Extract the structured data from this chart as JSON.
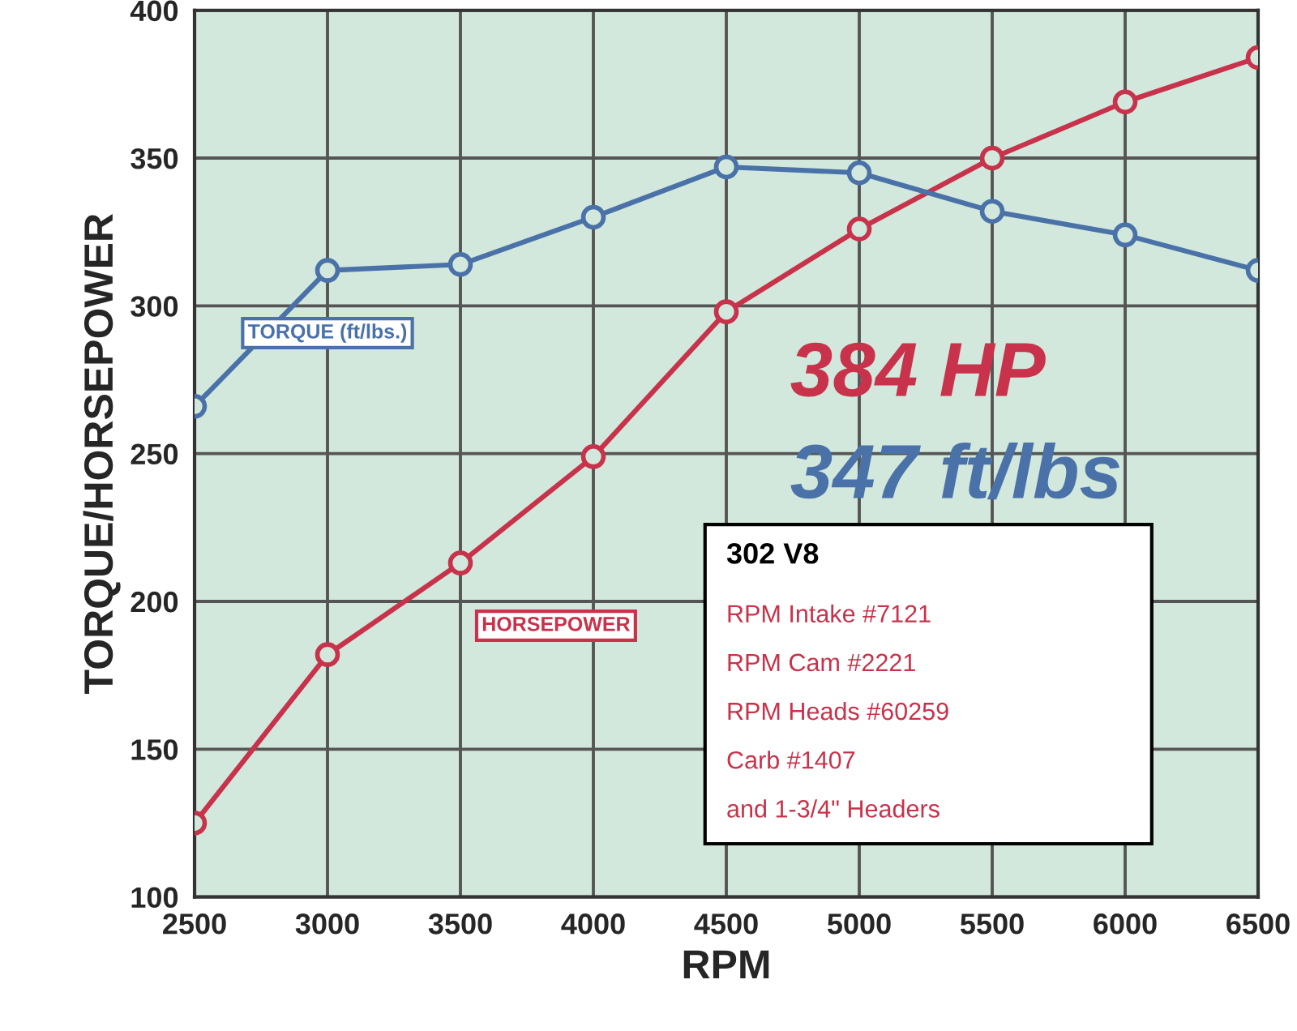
{
  "chart_data": {
    "type": "line",
    "xlabel": "RPM",
    "ylabel": "TORQUE/HORSEPOWER",
    "x": [
      2500,
      3000,
      3500,
      4000,
      4500,
      5000,
      5500,
      6000,
      6500
    ],
    "series": [
      {
        "name": "HORSEPOWER",
        "color": "#c8324a",
        "values": [
          125,
          182,
          213,
          249,
          298,
          326,
          350,
          369,
          384
        ]
      },
      {
        "name": "TORQUE (ft/lbs.)",
        "color": "#4a72a8",
        "values": [
          266,
          312,
          314,
          330,
          347,
          345,
          332,
          324,
          312
        ]
      }
    ],
    "xlim": [
      2500,
      6500
    ],
    "xticks": [
      2500,
      3000,
      3500,
      4000,
      4500,
      5000,
      5500,
      6000,
      6500
    ],
    "ylim": [
      100,
      400
    ],
    "yticks": [
      100,
      150,
      200,
      250,
      300,
      350,
      400
    ],
    "grid": true,
    "marker": "circle",
    "line_style": "solid",
    "annotations": [
      "384 HP",
      "347 ft/lbs",
      "302 V8",
      "RPM Intake #7121",
      "RPM Cam #2221",
      "RPM Heads #60259",
      "Carb #1407",
      "and 1-3/4\" Headers"
    ]
  }
}
